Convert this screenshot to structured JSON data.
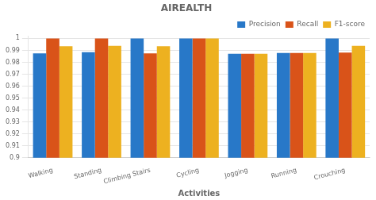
{
  "chart_data": {
    "type": "bar",
    "title": "AIREALTH",
    "xlabel": "Activities",
    "categories": [
      "Walking",
      "Standing",
      "Climbing Stairs",
      "Cycling",
      "Jogging",
      "Running",
      "Crouching"
    ],
    "series": [
      {
        "name": "Precision",
        "color": "#2878C8",
        "values": [
          0.9875,
          0.9885,
          1.0,
          1.0,
          0.9872,
          0.9878,
          1.0
        ]
      },
      {
        "name": "Recall",
        "color": "#D95319",
        "values": [
          1.0,
          1.0,
          0.9875,
          1.0,
          0.9872,
          0.9878,
          0.9882
        ]
      },
      {
        "name": "F1-score",
        "color": "#EDB120",
        "values": [
          0.9935,
          0.9938,
          0.9935,
          1.0,
          0.9872,
          0.9878,
          0.9938
        ]
      }
    ],
    "ylim": [
      0.9,
      1.002
    ],
    "yticks": [
      0.9,
      0.91,
      0.92,
      0.93,
      0.94,
      0.95,
      0.96,
      0.97,
      0.98,
      0.99,
      1
    ],
    "grid": "y",
    "legend": "upper right"
  }
}
